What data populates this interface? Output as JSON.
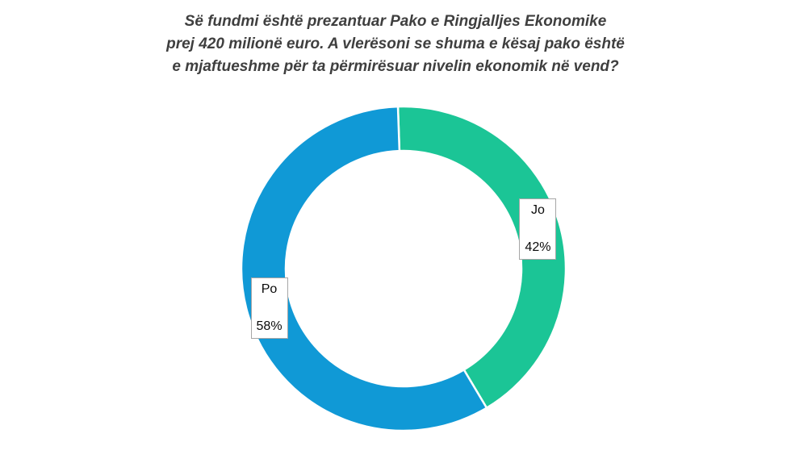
{
  "title": {
    "lines": [
      "Së fundmi është prezantuar Pako e Ringjalljes Ekonomike",
      "prej 420 milionë euro. A vlerësoni se shuma e kësaj pako është",
      "e mjaftueshme për ta përmirësuar nivelin ekonomik në vend?"
    ]
  },
  "chart_data": {
    "type": "pie",
    "subtype": "donut",
    "title": "Së fundmi është prezantuar Pako e Ringjalljes Ekonomike prej 420 milionë euro. A vlerësoni se shuma e kësaj pako është e mjaftueshme për ta përmirësuar nivelin ekonomik në vend?",
    "categories": [
      "Jo",
      "Po"
    ],
    "values": [
      42,
      58
    ],
    "slices": [
      {
        "label": "Jo",
        "value": 42,
        "pct_label": "42%",
        "color": "#1bc596"
      },
      {
        "label": "Po",
        "value": 58,
        "pct_label": "58%",
        "color": "#1099d6"
      }
    ],
    "legend_position": "none",
    "data_label_style": "boxed callout on ring with category name and percent",
    "title_color": "#3f3f3f",
    "gap_color": "#ffffff"
  }
}
